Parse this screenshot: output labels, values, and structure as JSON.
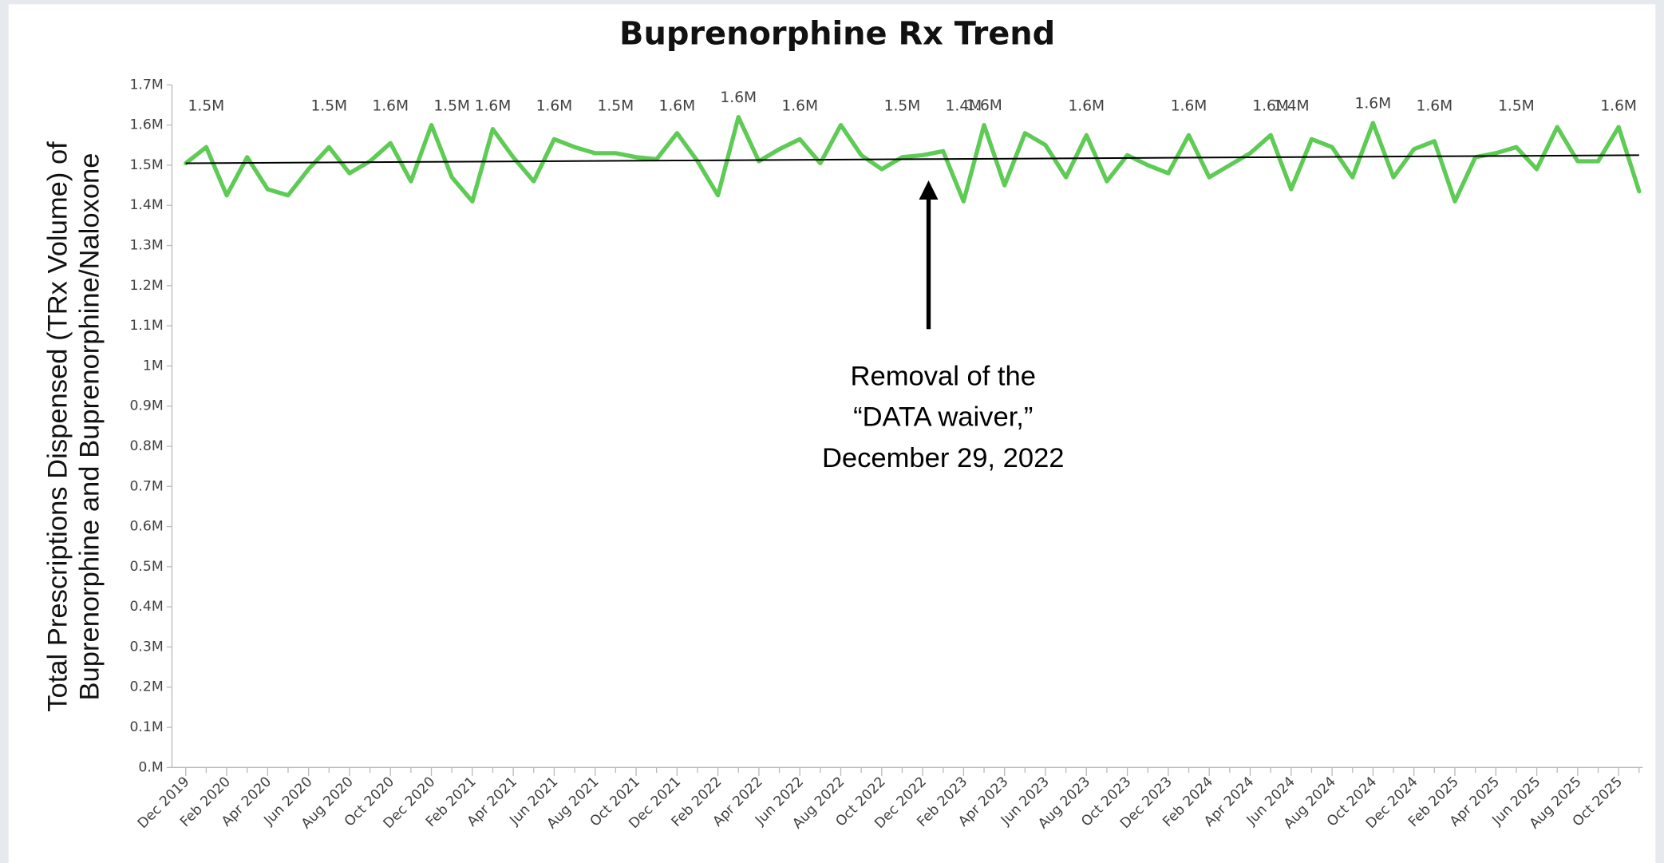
{
  "chart_data": {
    "type": "line",
    "title": "Buprenorphine Rx Trend",
    "y_label": [
      "Total Prescriptions Dispensed (TRx Volume) of",
      "Buprenorphine and Buprenorphine/Naloxone"
    ],
    "categories": [
      "Dec 2019",
      null,
      "Feb 2020",
      null,
      "Apr 2020",
      null,
      "Jun 2020",
      null,
      "Aug 2020",
      null,
      "Oct 2020",
      null,
      "Dec 2020",
      null,
      "Feb 2021",
      null,
      "Apr 2021",
      null,
      "Jun 2021",
      null,
      "Aug 2021",
      null,
      "Oct 2021",
      null,
      "Dec 2021",
      null,
      "Feb 2022",
      null,
      "Apr 2022",
      null,
      "Jun 2022",
      null,
      "Aug 2022",
      null,
      "Oct 2022",
      null,
      "Dec 2022",
      null,
      "Feb 2023",
      null,
      "Apr 2023",
      null,
      "Jun 2023",
      null,
      "Aug 2023",
      null,
      "Oct 2023",
      null,
      "Dec 2023",
      null,
      "Feb 2024",
      null,
      "Apr 2024",
      null,
      "Jun 2024",
      null,
      "Aug 2024",
      null,
      "Oct 2024",
      null,
      "Dec 2024",
      null,
      "Feb 2025",
      null,
      "Apr 2025",
      null,
      "Jun 2025",
      null,
      "Aug 2025",
      null,
      "Oct 2025",
      null
    ],
    "series": [
      {
        "color": "#5ecb55",
        "values": [
          1505000,
          1545000,
          1425000,
          1520000,
          1440000,
          1425000,
          1490000,
          1545000,
          1480000,
          1510000,
          1555000,
          1460000,
          1600000,
          1470000,
          1410000,
          1590000,
          1520000,
          1460000,
          1565000,
          1545000,
          1530000,
          1530000,
          1520000,
          1515000,
          1580000,
          1510000,
          1425000,
          1620000,
          1510000,
          1540000,
          1565000,
          1505000,
          1600000,
          1525000,
          1490000,
          1520000,
          1525000,
          1535000,
          1410000,
          1600000,
          1450000,
          1580000,
          1550000,
          1470000,
          1575000,
          1460000,
          1525000,
          1500000,
          1480000,
          1575000,
          1470000,
          1500000,
          1530000,
          1575000,
          1440000,
          1565000,
          1545000,
          1470000,
          1605000,
          1470000,
          1540000,
          1560000,
          1410000,
          1520000,
          1530000,
          1545000,
          1490000,
          1595000,
          1510000,
          1510000,
          1595000,
          1435000
        ],
        "value_labels": [
          null,
          "1.5M",
          null,
          null,
          null,
          null,
          null,
          "1.5M",
          null,
          null,
          "1.6M",
          null,
          null,
          "1.5M",
          null,
          "1.6M",
          null,
          null,
          "1.6M",
          null,
          null,
          "1.5M",
          null,
          null,
          "1.6M",
          null,
          null,
          "1.6M",
          null,
          null,
          "1.6M",
          null,
          null,
          null,
          null,
          "1.5M",
          null,
          null,
          "1.4M",
          "1.6M",
          null,
          null,
          null,
          null,
          "1.6M",
          null,
          null,
          null,
          null,
          "1.6M",
          null,
          null,
          null,
          "1.6M",
          "1.4M",
          null,
          null,
          null,
          "1.6M",
          null,
          null,
          "1.6M",
          null,
          null,
          null,
          "1.5M",
          null,
          null,
          null,
          null,
          "1.6M",
          null
        ]
      }
    ],
    "trendline": {
      "color": "#000000",
      "values": [
        1505000,
        1525000
      ]
    },
    "ylim": [
      0,
      1700000
    ],
    "yticks": [
      {
        "value": 0,
        "label": "0.M"
      },
      {
        "value": 100000,
        "label": "0.1M"
      },
      {
        "value": 200000,
        "label": "0.2M"
      },
      {
        "value": 300000,
        "label": "0.3M"
      },
      {
        "value": 400000,
        "label": "0.4M"
      },
      {
        "value": 500000,
        "label": "0.5M"
      },
      {
        "value": 600000,
        "label": "0.6M"
      },
      {
        "value": 700000,
        "label": "0.7M"
      },
      {
        "value": 800000,
        "label": "0.8M"
      },
      {
        "value": 900000,
        "label": "0.9M"
      },
      {
        "value": 1000000,
        "label": "1M"
      },
      {
        "value": 1100000,
        "label": "1.1M"
      },
      {
        "value": 1200000,
        "label": "1.2M"
      },
      {
        "value": 1300000,
        "label": "1.3M"
      },
      {
        "value": 1400000,
        "label": "1.4M"
      },
      {
        "value": 1500000,
        "label": "1.5M"
      },
      {
        "value": 1600000,
        "label": "1.6M"
      },
      {
        "value": 1700000,
        "label": "1.7M"
      }
    ],
    "annotation": {
      "lines": [
        "Removal of the",
        "“DATA waiver,”",
        "December 29, 2022"
      ],
      "category_index": 37
    }
  }
}
